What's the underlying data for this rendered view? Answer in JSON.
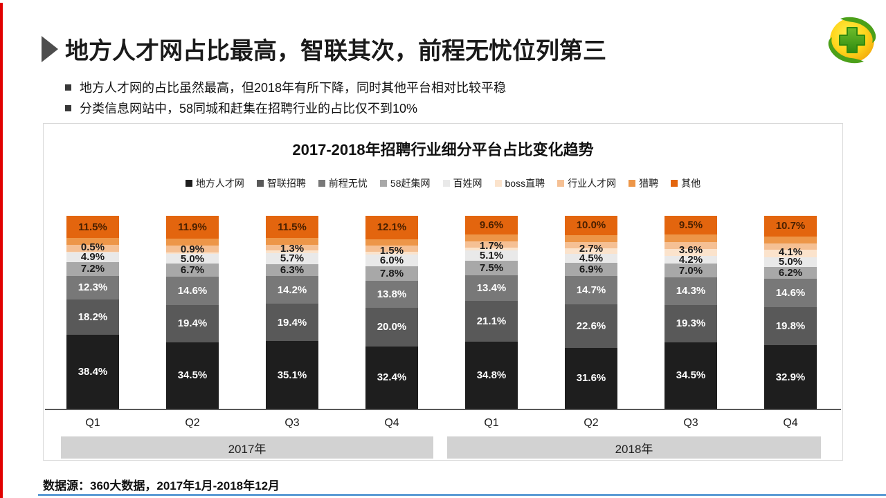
{
  "header": {
    "title": "地方人才网占比最高，智联其次，前程无忧位列第三",
    "bullets": [
      "地方人才网的占比虽然最高，但2018年有所下降，同时其他平台相对比较平稳",
      "分类信息网站中，58同城和赶集在招聘行业的占比仅不到10%"
    ]
  },
  "footer": {
    "source": "数据源：360大数据，2017年1月-2018年12月"
  },
  "theme": {
    "left_accent_color": "#e10000",
    "bottom_accent_color": "#5b9bd5",
    "panel_border_color": "#d9d9d9",
    "year_band_color": "#d2d2d2",
    "axis_line_color": "#595959",
    "logo_colors": {
      "sphere": "#fdc912",
      "leaf": "#4ba019",
      "cross": "#3e9114"
    }
  },
  "chart_data": {
    "type": "bar",
    "subtype": "stacked-100",
    "title": "2017-2018年招聘行业细分平台占比变化趋势",
    "unit": "%",
    "ylim": [
      0,
      100
    ],
    "grid": false,
    "legend_position": "top",
    "categories": [
      "Q1",
      "Q2",
      "Q3",
      "Q4",
      "Q1",
      "Q2",
      "Q3",
      "Q4"
    ],
    "group_labels": [
      "2017年",
      "2018年"
    ],
    "series": [
      {
        "name": "地方人才网",
        "color": "#1e1e1e",
        "label_color": "#ffffff",
        "labels_visible": true,
        "values": [
          38.4,
          34.5,
          35.1,
          32.4,
          34.8,
          31.6,
          34.5,
          32.9
        ]
      },
      {
        "name": "智联招聘",
        "color": "#595959",
        "label_color": "#ffffff",
        "labels_visible": true,
        "values": [
          18.2,
          19.4,
          19.4,
          20.0,
          21.1,
          22.6,
          19.3,
          19.8
        ]
      },
      {
        "name": "前程无忧",
        "color": "#787878",
        "label_color": "#ffffff",
        "labels_visible": true,
        "values": [
          12.3,
          14.6,
          14.2,
          13.8,
          13.4,
          14.7,
          14.3,
          14.6
        ]
      },
      {
        "name": "58赶集网",
        "color": "#a8a8a8",
        "label_color": "#1a1a1a",
        "labels_visible": true,
        "values": [
          7.2,
          6.7,
          6.3,
          7.8,
          7.5,
          6.9,
          7.0,
          6.2
        ]
      },
      {
        "name": "百姓网",
        "color": "#e9e9e9",
        "label_color": "#1a1a1a",
        "labels_visible": true,
        "values": [
          4.9,
          5.0,
          5.7,
          6.0,
          5.1,
          4.5,
          4.2,
          5.0
        ]
      },
      {
        "name": "boss直聘",
        "color": "#fbe3cc",
        "label_color": "#1a1a1a",
        "labels_visible": true,
        "values": [
          0.5,
          0.9,
          1.3,
          1.5,
          1.7,
          2.7,
          3.6,
          4.1
        ]
      },
      {
        "name": "行业人才网",
        "color": "#f5c094",
        "label_color": "#1a1a1a",
        "labels_visible": false,
        "values_estimated": true,
        "values": [
          3.4,
          3.4,
          3.1,
          3.0,
          3.2,
          3.3,
          3.6,
          3.2
        ]
      },
      {
        "name": "猎聘",
        "color": "#ed9648",
        "label_color": "#1a1a1a",
        "labels_visible": false,
        "values_estimated": true,
        "values": [
          3.6,
          3.6,
          3.4,
          3.4,
          3.6,
          3.7,
          4.0,
          3.5
        ]
      },
      {
        "name": "其他",
        "color": "#e3650e",
        "label_color": "#4a2000",
        "labels_visible": true,
        "values": [
          11.5,
          11.9,
          11.5,
          12.1,
          9.6,
          10.0,
          9.5,
          10.7
        ]
      }
    ]
  }
}
